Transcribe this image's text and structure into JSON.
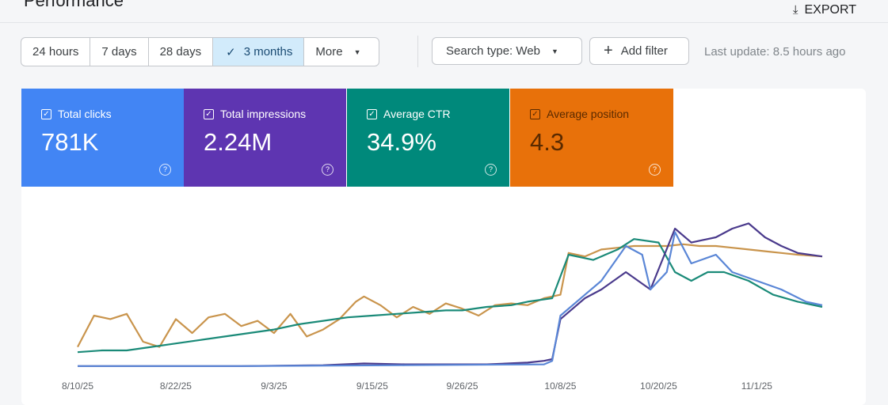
{
  "header": {
    "title": "Performance",
    "export_label": "EXPORT"
  },
  "date_range": {
    "options": [
      "24 hours",
      "7 days",
      "28 days",
      "3 months",
      "More"
    ],
    "selected": "3 months"
  },
  "filters": {
    "search_type": "Search type: Web",
    "add_filter": "Add filter",
    "last_update": "Last update: 8.5 hours ago"
  },
  "metrics": [
    {
      "label": "Total clicks",
      "value": "781K",
      "color": "#4285f4",
      "checked": true
    },
    {
      "label": "Total impressions",
      "value": "2.24M",
      "color": "#5e35b1",
      "checked": true
    },
    {
      "label": "Average CTR",
      "value": "34.9%",
      "color": "#00897b",
      "checked": true
    },
    {
      "label": "Average position",
      "value": "4.3",
      "color": "#e8710a",
      "checked": true
    }
  ],
  "chart_data": {
    "type": "line",
    "x_unit": "days since 8/10/25",
    "x_ticks": [
      {
        "day": 0,
        "label": "8/10/25"
      },
      {
        "day": 12,
        "label": "8/22/25"
      },
      {
        "day": 24,
        "label": "9/3/25"
      },
      {
        "day": 36,
        "label": "9/15/25"
      },
      {
        "day": 47,
        "label": "9/26/25"
      },
      {
        "day": 59,
        "label": "10/8/25"
      },
      {
        "day": 71,
        "label": "10/20/25"
      },
      {
        "day": 83,
        "label": "11/1/25"
      }
    ],
    "xlim": [
      0,
      91
    ],
    "ylim": [
      0,
      100
    ],
    "normalized": true,
    "series": [
      {
        "name": "Average position",
        "color": "#c9944c",
        "points": [
          [
            0,
            12
          ],
          [
            2,
            30
          ],
          [
            4,
            28
          ],
          [
            6,
            31
          ],
          [
            8,
            15
          ],
          [
            10,
            12
          ],
          [
            12,
            28
          ],
          [
            14,
            20
          ],
          [
            16,
            29
          ],
          [
            18,
            31
          ],
          [
            20,
            24
          ],
          [
            22,
            27
          ],
          [
            24,
            20
          ],
          [
            26,
            31
          ],
          [
            28,
            18
          ],
          [
            30,
            22
          ],
          [
            32,
            28
          ],
          [
            34,
            38
          ],
          [
            35,
            41
          ],
          [
            37,
            36
          ],
          [
            39,
            29
          ],
          [
            41,
            35
          ],
          [
            43,
            31
          ],
          [
            45,
            37
          ],
          [
            47,
            34
          ],
          [
            49,
            30
          ],
          [
            51,
            36
          ],
          [
            53,
            37
          ],
          [
            55,
            36
          ],
          [
            57,
            40
          ],
          [
            59,
            42
          ],
          [
            60,
            66
          ],
          [
            62,
            64
          ],
          [
            64,
            68
          ],
          [
            66,
            69
          ],
          [
            68,
            70
          ],
          [
            70,
            70
          ],
          [
            72,
            70
          ],
          [
            74,
            71
          ],
          [
            76,
            70
          ],
          [
            78,
            70
          ],
          [
            80,
            69
          ],
          [
            82,
            68
          ],
          [
            84,
            67
          ],
          [
            86,
            66
          ],
          [
            88,
            65
          ],
          [
            91,
            64
          ]
        ]
      },
      {
        "name": "Average CTR",
        "color": "#1a8a78",
        "points": [
          [
            0,
            9
          ],
          [
            3,
            10
          ],
          [
            6,
            10
          ],
          [
            9,
            12
          ],
          [
            12,
            14
          ],
          [
            15,
            16
          ],
          [
            18,
            18
          ],
          [
            21,
            20
          ],
          [
            24,
            22
          ],
          [
            27,
            25
          ],
          [
            30,
            27
          ],
          [
            33,
            29
          ],
          [
            36,
            30
          ],
          [
            39,
            31
          ],
          [
            42,
            32
          ],
          [
            45,
            33
          ],
          [
            47,
            33
          ],
          [
            50,
            35
          ],
          [
            53,
            36
          ],
          [
            55,
            38
          ],
          [
            58,
            40
          ],
          [
            60,
            65
          ],
          [
            63,
            62
          ],
          [
            66,
            68
          ],
          [
            68,
            74
          ],
          [
            71,
            72
          ],
          [
            73,
            55
          ],
          [
            75,
            50
          ],
          [
            77,
            55
          ],
          [
            79,
            55
          ],
          [
            82,
            50
          ],
          [
            85,
            42
          ],
          [
            88,
            38
          ],
          [
            91,
            35
          ]
        ]
      },
      {
        "name": "Total impressions",
        "color": "#4a3a8c",
        "points": [
          [
            0,
            1
          ],
          [
            10,
            1
          ],
          [
            20,
            1
          ],
          [
            30,
            1.5
          ],
          [
            35,
            2.5
          ],
          [
            40,
            2
          ],
          [
            50,
            2
          ],
          [
            55,
            3
          ],
          [
            57,
            4
          ],
          [
            58,
            5
          ],
          [
            59,
            28
          ],
          [
            62,
            40
          ],
          [
            64,
            45
          ],
          [
            67,
            55
          ],
          [
            70,
            45
          ],
          [
            73,
            80
          ],
          [
            75,
            72
          ],
          [
            78,
            75
          ],
          [
            80,
            80
          ],
          [
            82,
            83
          ],
          [
            84,
            75
          ],
          [
            86,
            70
          ],
          [
            88,
            66
          ],
          [
            91,
            64
          ]
        ]
      },
      {
        "name": "Total clicks",
        "color": "#5a86d6",
        "points": [
          [
            0,
            1
          ],
          [
            20,
            1
          ],
          [
            40,
            1.5
          ],
          [
            57,
            2
          ],
          [
            58,
            4
          ],
          [
            59,
            30
          ],
          [
            62,
            42
          ],
          [
            64,
            50
          ],
          [
            67,
            70
          ],
          [
            69,
            65
          ],
          [
            70,
            45
          ],
          [
            72,
            55
          ],
          [
            73,
            78
          ],
          [
            75,
            60
          ],
          [
            78,
            65
          ],
          [
            80,
            55
          ],
          [
            83,
            50
          ],
          [
            86,
            45
          ],
          [
            89,
            38
          ],
          [
            91,
            36
          ]
        ]
      }
    ]
  }
}
